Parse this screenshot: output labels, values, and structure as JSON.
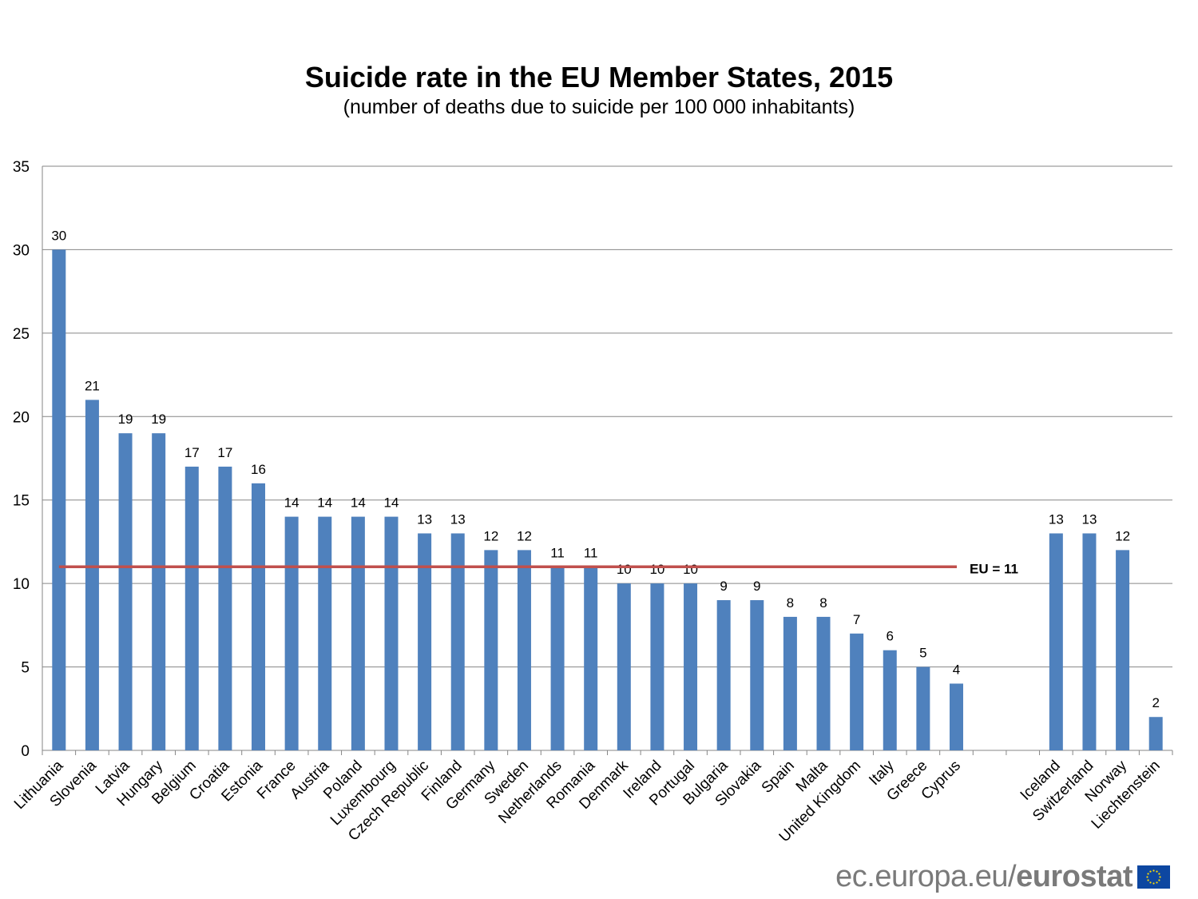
{
  "chart_data": {
    "type": "bar",
    "title": "Suicide rate in the EU Member States,  2015",
    "subtitle": "(number of deaths due to suicide per 100 000 inhabitants)",
    "xlabel": "",
    "ylabel": "",
    "ylim": [
      0,
      35
    ],
    "yticks": [
      0,
      5,
      10,
      15,
      20,
      25,
      30,
      35
    ],
    "grid": true,
    "categories": [
      "Lithuania",
      "Slovenia",
      "Latvia",
      "Hungary",
      "Belgium",
      "Croatia",
      "Estonia",
      "France",
      "Austria",
      "Poland",
      "Luxembourg",
      "Czech Republic",
      "Finland",
      "Germany",
      "Sweden",
      "Netherlands",
      "Romania",
      "Denmark",
      "Ireland",
      "Portugal",
      "Bulgaria",
      "Slovakia",
      "Spain",
      "Malta",
      "United Kingdom",
      "Italy",
      "Greece",
      "Cyprus",
      "",
      "",
      "Iceland",
      "Switzerland",
      "Norway",
      "Liechtenstein"
    ],
    "values": [
      30,
      21,
      19,
      19,
      17,
      17,
      16,
      14,
      14,
      14,
      14,
      13,
      13,
      12,
      12,
      11,
      11,
      10,
      10,
      10,
      9,
      9,
      8,
      8,
      7,
      6,
      5,
      4,
      null,
      null,
      13,
      13,
      12,
      2
    ],
    "reference_line": {
      "label": "EU = 11",
      "value": 11,
      "color": "#c0504d"
    },
    "bar_color": "#4f81bd"
  },
  "logo": {
    "text_regular": "ec.europa.eu/",
    "text_bold": "eurostat",
    "icon": "eu-flag-icon"
  }
}
